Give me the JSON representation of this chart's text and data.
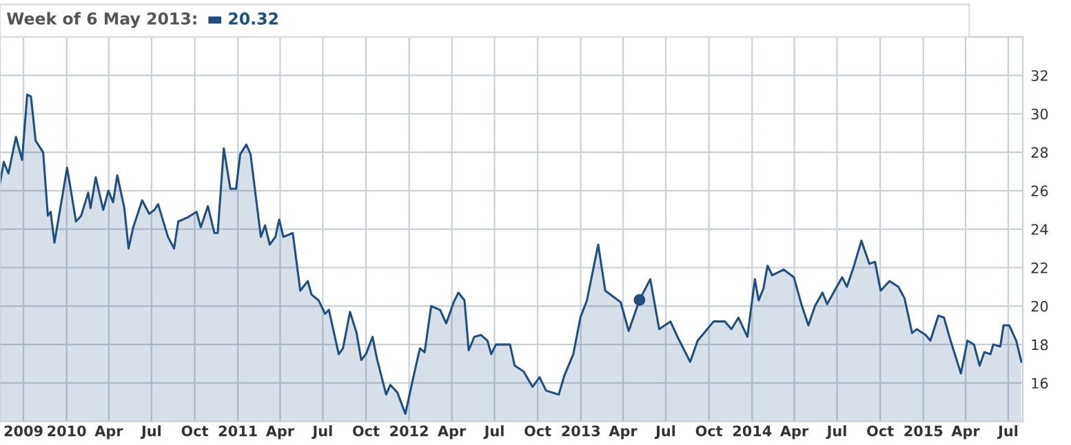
{
  "chart_data": {
    "type": "area",
    "annotations": [
      "Week of 6 May 2013:",
      "20.32"
    ],
    "x": [
      "2009-08-12",
      "2009-08-20",
      "2009-08-30",
      "2009-09-15",
      "2009-09-28",
      "2009-10-09",
      "2009-10-17",
      "2009-10-27",
      "2009-11-12",
      "2009-11-22",
      "2009-11-28",
      "2009-12-06",
      "2009-12-20",
      "2010-01-02",
      "2010-01-21",
      "2010-02-01",
      "2010-02-16",
      "2010-02-21",
      "2010-03-04",
      "2010-03-20",
      "2010-03-31",
      "2010-04-10",
      "2010-04-19",
      "2010-05-04",
      "2010-05-13",
      "2010-05-23",
      "2010-06-11",
      "2010-06-26",
      "2010-07-07",
      "2010-07-15",
      "2010-08-05",
      "2010-08-18",
      "2010-08-27",
      "2010-09-15",
      "2010-10-05",
      "2010-10-14",
      "2010-10-29",
      "2010-11-12",
      "2010-11-19",
      "2010-12-02",
      "2010-12-16",
      "2010-12-28",
      "2011-01-06",
      "2011-01-19",
      "2011-01-28",
      "2011-02-19",
      "2011-02-28",
      "2011-03-10",
      "2011-03-22",
      "2011-03-30",
      "2011-04-08",
      "2011-04-28",
      "2011-05-14",
      "2011-05-30",
      "2011-06-07",
      "2011-06-22",
      "2011-07-06",
      "2011-07-14",
      "2011-08-04",
      "2011-08-13",
      "2011-08-28",
      "2011-09-11",
      "2011-09-21",
      "2011-10-01",
      "2011-10-15",
      "2011-10-25",
      "2011-11-13",
      "2011-11-22",
      "2011-12-07",
      "2011-12-24",
      "2012-01-10",
      "2012-01-24",
      "2012-02-03",
      "2012-02-17",
      "2012-03-07",
      "2012-03-20",
      "2012-04-05",
      "2012-04-15",
      "2012-04-28",
      "2012-05-07",
      "2012-05-19",
      "2012-06-02",
      "2012-06-16",
      "2012-06-24",
      "2012-07-04",
      "2012-08-03",
      "2012-08-13",
      "2012-09-01",
      "2012-09-20",
      "2012-10-05",
      "2012-10-19",
      "2012-11-15",
      "2012-11-27",
      "2012-12-16",
      "2012-12-31",
      "2013-01-14",
      "2013-02-07",
      "2013-02-22",
      "2013-03-27",
      "2013-04-13",
      "2013-05-06",
      "2013-05-29",
      "2013-06-17",
      "2013-07-11",
      "2013-07-26",
      "2013-08-22",
      "2013-09-07",
      "2013-10-11",
      "2013-11-04",
      "2013-11-18",
      "2013-12-03",
      "2013-12-22",
      "2014-01-07",
      "2014-01-15",
      "2014-01-25",
      "2014-02-03",
      "2014-02-13",
      "2014-03-09",
      "2014-03-31",
      "2014-04-16",
      "2014-05-01",
      "2014-05-15",
      "2014-05-31",
      "2014-06-10",
      "2014-06-28",
      "2014-07-12",
      "2014-07-22",
      "2014-08-05",
      "2014-08-22",
      "2014-09-08",
      "2014-09-20",
      "2014-10-02",
      "2014-10-21",
      "2014-11-09",
      "2014-11-22",
      "2014-12-08",
      "2014-12-18",
      "2015-01-06",
      "2015-01-16",
      "2015-02-02",
      "2015-02-14",
      "2015-02-28",
      "2015-03-22",
      "2015-04-05",
      "2015-04-19",
      "2015-05-01",
      "2015-05-11",
      "2015-05-24",
      "2015-05-30",
      "2015-06-14",
      "2015-06-21",
      "2015-07-03",
      "2015-07-18",
      "2015-07-29"
    ],
    "series": [
      {
        "color": "#1f4f7f",
        "values": [
          26.4,
          27.5,
          26.9,
          28.8,
          27.6,
          31.0,
          30.9,
          28.6,
          28.0,
          24.7,
          24.9,
          23.3,
          25.3,
          27.2,
          24.4,
          24.7,
          25.9,
          25.1,
          26.7,
          25.0,
          26.0,
          25.4,
          26.8,
          25.1,
          23.0,
          24.1,
          25.5,
          24.8,
          25.0,
          25.3,
          23.6,
          23.0,
          24.4,
          24.6,
          24.9,
          24.1,
          25.2,
          23.8,
          23.8,
          28.2,
          26.1,
          26.1,
          27.9,
          28.4,
          27.9,
          23.6,
          24.2,
          23.2,
          23.6,
          24.5,
          23.6,
          23.8,
          20.8,
          21.3,
          20.6,
          20.3,
          19.6,
          19.8,
          17.5,
          17.8,
          19.7,
          18.6,
          17.2,
          17.5,
          18.4,
          17.2,
          15.4,
          15.9,
          15.5,
          14.4,
          16.3,
          17.8,
          17.6,
          20.0,
          19.8,
          19.1,
          20.2,
          20.7,
          20.3,
          17.7,
          18.4,
          18.5,
          18.2,
          17.5,
          18.0,
          18.0,
          16.9,
          16.6,
          15.8,
          16.3,
          15.6,
          15.4,
          16.4,
          17.5,
          19.4,
          20.3,
          23.2,
          20.8,
          20.2,
          18.7,
          20.32,
          21.4,
          18.8,
          19.2,
          18.4,
          17.1,
          18.2,
          19.2,
          19.2,
          18.8,
          19.4,
          18.4,
          21.4,
          20.3,
          20.9,
          22.1,
          21.6,
          21.9,
          21.5,
          20.1,
          19.0,
          20.0,
          20.7,
          20.1,
          20.9,
          21.5,
          21.0,
          22.0,
          23.4,
          22.2,
          22.3,
          20.8,
          21.3,
          21.0,
          20.4,
          18.6,
          18.8,
          18.5,
          18.2,
          19.5,
          19.4,
          18.2,
          16.5,
          18.2,
          18.0,
          16.9,
          17.6,
          17.5,
          18.0,
          17.9,
          19.0,
          19.0,
          18.2,
          17.1
        ]
      },
      {
        "type": "scatter",
        "color": "#1f4f7f",
        "x": [
          "2013-05-06"
        ],
        "values": [
          20.32
        ]
      }
    ],
    "xlim": [
      "2009-08-12",
      "2015-08-01"
    ],
    "xticks": [
      {
        "value": "2009-10-01",
        "label": "2009"
      },
      {
        "value": "2010-01-01",
        "label": "2010"
      },
      {
        "value": "2010-04-01",
        "label": "Apr"
      },
      {
        "value": "2010-07-01",
        "label": "Jul"
      },
      {
        "value": "2010-10-01",
        "label": "Oct"
      },
      {
        "value": "2011-01-01",
        "label": "2011"
      },
      {
        "value": "2011-04-01",
        "label": "Apr"
      },
      {
        "value": "2011-07-01",
        "label": "Jul"
      },
      {
        "value": "2011-10-01",
        "label": "Oct"
      },
      {
        "value": "2012-01-01",
        "label": "2012"
      },
      {
        "value": "2012-04-01",
        "label": "Apr"
      },
      {
        "value": "2012-07-01",
        "label": "Jul"
      },
      {
        "value": "2012-10-01",
        "label": "Oct"
      },
      {
        "value": "2013-01-01",
        "label": "2013"
      },
      {
        "value": "2013-04-01",
        "label": "Apr"
      },
      {
        "value": "2013-07-01",
        "label": "Jul"
      },
      {
        "value": "2013-10-01",
        "label": "Oct"
      },
      {
        "value": "2014-01-01",
        "label": "2014"
      },
      {
        "value": "2014-04-01",
        "label": "Apr"
      },
      {
        "value": "2014-07-01",
        "label": "Jul"
      },
      {
        "value": "2014-10-01",
        "label": "Oct"
      },
      {
        "value": "2015-01-01",
        "label": "2015"
      },
      {
        "value": "2015-04-01",
        "label": "Apr"
      },
      {
        "value": "2015-07-01",
        "label": "Jul"
      }
    ],
    "ylim": [
      14,
      34
    ],
    "yticks": [
      16,
      18,
      20,
      22,
      24,
      26,
      28,
      30,
      32
    ],
    "grid": true
  }
}
